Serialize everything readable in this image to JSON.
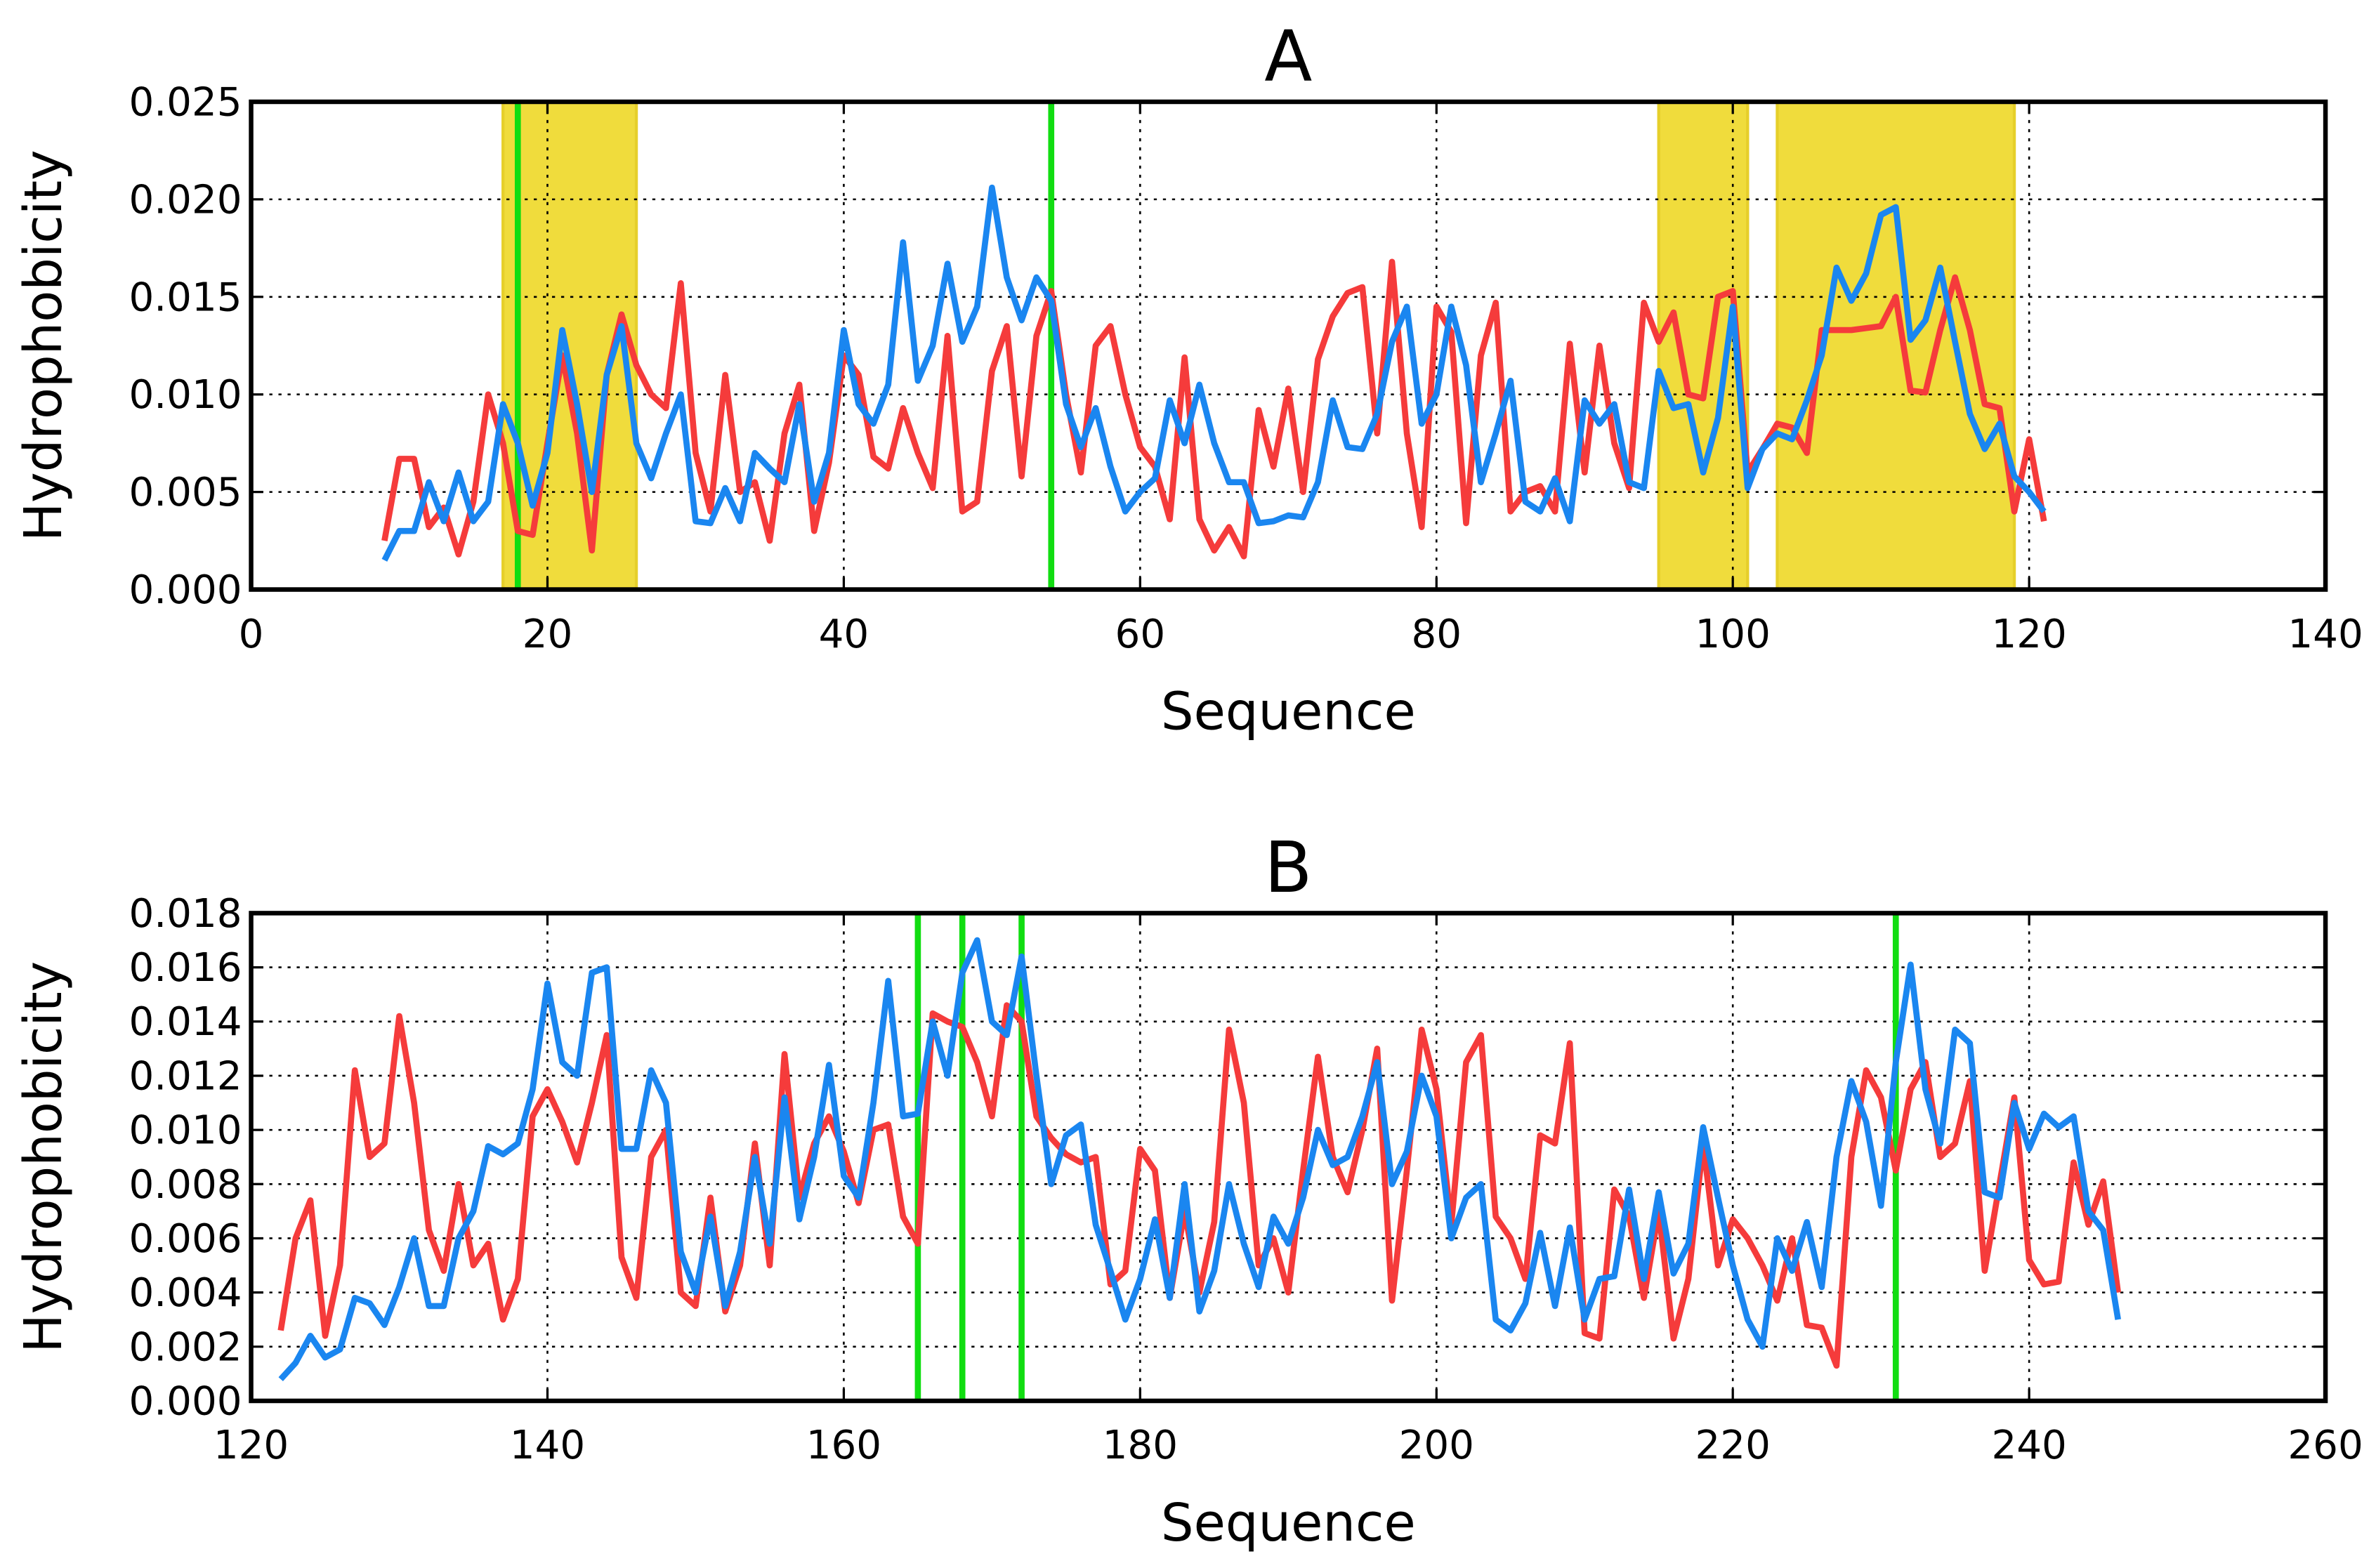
{
  "chart_data": [
    {
      "type": "line",
      "title": "A",
      "xlabel": "Sequence",
      "ylabel": "Hydrophobicity",
      "x": [
        9,
        10,
        11,
        12,
        13,
        14,
        15,
        16,
        17,
        18,
        19,
        20,
        21,
        22,
        23,
        24,
        25,
        26,
        27,
        28,
        29,
        30,
        31,
        32,
        33,
        34,
        35,
        36,
        37,
        38,
        39,
        40,
        41,
        42,
        43,
        44,
        45,
        46,
        47,
        48,
        49,
        50,
        51,
        52,
        53,
        54,
        55,
        56,
        57,
        58,
        59,
        60,
        61,
        62,
        63,
        64,
        65,
        66,
        67,
        68,
        69,
        70,
        71,
        72,
        73,
        74,
        75,
        76,
        77,
        78,
        79,
        80,
        81,
        82,
        83,
        84,
        85,
        86,
        87,
        88,
        89,
        90,
        91,
        92,
        93,
        94,
        95,
        96,
        97,
        98,
        99,
        100,
        101,
        102,
        103,
        104,
        105,
        106,
        107,
        108,
        109,
        110,
        111,
        112,
        113,
        114,
        115,
        116,
        117,
        118,
        119,
        120,
        121
      ],
      "series": [
        {
          "color": "#f53b3b",
          "values": [
            0.0025,
            0.0067,
            0.0067,
            0.0032,
            0.0042,
            0.0018,
            0.0045,
            0.01,
            0.0075,
            0.003,
            0.0028,
            0.0075,
            0.012,
            0.008,
            0.002,
            0.011,
            0.0141,
            0.0115,
            0.01,
            0.0093,
            0.0157,
            0.007,
            0.004,
            0.011,
            0.005,
            0.0055,
            0.0025,
            0.008,
            0.0105,
            0.003,
            0.0065,
            0.012,
            0.011,
            0.0068,
            0.0062,
            0.0093,
            0.007,
            0.0052,
            0.013,
            0.004,
            0.0045,
            0.0112,
            0.0135,
            0.0058,
            0.013,
            0.0153,
            0.01,
            0.006,
            0.0125,
            0.0135,
            0.01,
            0.0073,
            0.0063,
            0.0036,
            0.0119,
            0.0036,
            0.002,
            0.0032,
            0.0017,
            0.0092,
            0.0063,
            0.0103,
            0.005,
            0.0118,
            0.014,
            0.0152,
            0.0155,
            0.008,
            0.0168,
            0.008,
            0.0032,
            0.0145,
            0.0132,
            0.0034,
            0.012,
            0.0147,
            0.004,
            0.005,
            0.0053,
            0.004,
            0.0126,
            0.006,
            0.0125,
            0.0075,
            0.0052,
            0.0147,
            0.0127,
            0.0142,
            0.01,
            0.0098,
            0.015,
            0.0153,
            0.006,
            0.0072,
            0.0085,
            0.0083,
            0.007,
            0.0133,
            0.0133,
            0.0133,
            0.0134,
            0.0135,
            0.015,
            0.0102,
            0.0101,
            0.0133,
            0.016,
            0.0133,
            0.0095,
            0.0093,
            0.004,
            0.0077,
            0.0035
          ]
        },
        {
          "color": "#1a86f0",
          "values": [
            0.0015,
            0.003,
            0.003,
            0.0055,
            0.0035,
            0.006,
            0.0035,
            0.0045,
            0.0095,
            0.0075,
            0.0043,
            0.007,
            0.0133,
            0.0095,
            0.005,
            0.011,
            0.0135,
            0.0075,
            0.0057,
            0.008,
            0.01,
            0.0035,
            0.0034,
            0.0052,
            0.0035,
            0.007,
            0.0062,
            0.0055,
            0.0095,
            0.0045,
            0.007,
            0.0133,
            0.0095,
            0.0085,
            0.0105,
            0.0178,
            0.0107,
            0.0125,
            0.0167,
            0.0127,
            0.0145,
            0.0206,
            0.016,
            0.0138,
            0.016,
            0.0148,
            0.0095,
            0.0073,
            0.0093,
            0.0063,
            0.004,
            0.005,
            0.0057,
            0.0097,
            0.0075,
            0.0105,
            0.0075,
            0.0055,
            0.0055,
            0.0034,
            0.0035,
            0.0038,
            0.0037,
            0.0055,
            0.0097,
            0.0073,
            0.0072,
            0.009,
            0.0127,
            0.0145,
            0.0085,
            0.01,
            0.0145,
            0.0115,
            0.0055,
            0.008,
            0.0107,
            0.0045,
            0.004,
            0.0057,
            0.0035,
            0.0097,
            0.0085,
            0.0095,
            0.0055,
            0.0052,
            0.0112,
            0.0093,
            0.0095,
            0.006,
            0.0088,
            0.0145,
            0.0052,
            0.0072,
            0.008,
            0.0077,
            0.0097,
            0.012,
            0.0165,
            0.0148,
            0.0162,
            0.0192,
            0.0196,
            0.0128,
            0.0138,
            0.0165,
            0.0127,
            0.009,
            0.0072,
            0.0085,
            0.0058,
            0.005,
            0.004
          ]
        }
      ],
      "xlim": [
        0,
        140
      ],
      "xticks": [
        0,
        20,
        40,
        60,
        80,
        100,
        120,
        140
      ],
      "ylim": [
        0,
        0.025
      ],
      "yticks": [
        {
          "value": 0,
          "label": "0.000"
        },
        0.005,
        {
          "value": 0.01,
          "label": "0.010"
        },
        0.015,
        {
          "value": 0.02,
          "label": "0.020"
        },
        0.025
      ],
      "grid": true,
      "spans": [
        [
          17,
          26
        ],
        [
          95,
          101
        ],
        [
          103,
          119
        ]
      ],
      "span_color": "#f0dc3c",
      "vlines": [
        18,
        54
      ],
      "vline_color": "#11dd11"
    },
    {
      "type": "line",
      "title": "B",
      "xlabel": "Sequence",
      "ylabel": "Hydrophobicity",
      "x": [
        122,
        123,
        124,
        125,
        126,
        127,
        128,
        129,
        130,
        131,
        132,
        133,
        134,
        135,
        136,
        137,
        138,
        139,
        140,
        141,
        142,
        143,
        144,
        145,
        146,
        147,
        148,
        149,
        150,
        151,
        152,
        153,
        154,
        155,
        156,
        157,
        158,
        159,
        160,
        161,
        162,
        163,
        164,
        165,
        166,
        167,
        168,
        169,
        170,
        171,
        172,
        173,
        174,
        175,
        176,
        177,
        178,
        179,
        180,
        181,
        182,
        183,
        184,
        185,
        186,
        187,
        188,
        189,
        190,
        191,
        192,
        193,
        194,
        195,
        196,
        197,
        198,
        199,
        200,
        201,
        202,
        203,
        204,
        205,
        206,
        207,
        208,
        209,
        210,
        211,
        212,
        213,
        214,
        215,
        216,
        217,
        218,
        219,
        220,
        221,
        222,
        223,
        224,
        225,
        226,
        227,
        228,
        229,
        230,
        231,
        232,
        233,
        234,
        235,
        236,
        237,
        238,
        239,
        240,
        241,
        242,
        243,
        244,
        245,
        246
      ],
      "series": [
        {
          "color": "#f53b3b",
          "values": [
            0.0026,
            0.006,
            0.0074,
            0.0024,
            0.005,
            0.0122,
            0.009,
            0.0095,
            0.0142,
            0.011,
            0.0063,
            0.0048,
            0.008,
            0.005,
            0.0058,
            0.003,
            0.0045,
            0.0105,
            0.0115,
            0.0103,
            0.0088,
            0.011,
            0.0135,
            0.0053,
            0.0038,
            0.009,
            0.01,
            0.004,
            0.0035,
            0.0075,
            0.0033,
            0.005,
            0.0095,
            0.005,
            0.0128,
            0.0075,
            0.0095,
            0.0105,
            0.0092,
            0.0073,
            0.01,
            0.0102,
            0.0068,
            0.0058,
            0.0143,
            0.014,
            0.0138,
            0.0125,
            0.0105,
            0.0146,
            0.014,
            0.0105,
            0.0097,
            0.0091,
            0.0088,
            0.009,
            0.0043,
            0.0048,
            0.0093,
            0.0085,
            0.0038,
            0.007,
            0.004,
            0.0066,
            0.0137,
            0.011,
            0.005,
            0.006,
            0.004,
            0.0085,
            0.0127,
            0.009,
            0.0077,
            0.01,
            0.013,
            0.0037,
            0.0085,
            0.0137,
            0.0115,
            0.0065,
            0.0125,
            0.0135,
            0.0068,
            0.006,
            0.0045,
            0.0098,
            0.0095,
            0.0132,
            0.0025,
            0.0023,
            0.0078,
            0.0068,
            0.0038,
            0.007,
            0.0023,
            0.0045,
            0.0095,
            0.005,
            0.0067,
            0.006,
            0.005,
            0.0037,
            0.006,
            0.0028,
            0.0027,
            0.0013,
            0.009,
            0.0122,
            0.0112,
            0.0085,
            0.0115,
            0.0125,
            0.009,
            0.0095,
            0.0118,
            0.0048,
            0.008,
            0.0112,
            0.0052,
            0.0043,
            0.0044,
            0.0088,
            0.0065,
            0.0081,
            0.004
          ]
        },
        {
          "color": "#1a86f0",
          "values": [
            0.0008,
            0.0014,
            0.0024,
            0.0016,
            0.0019,
            0.0038,
            0.0036,
            0.0028,
            0.0042,
            0.006,
            0.0035,
            0.0035,
            0.006,
            0.007,
            0.0094,
            0.0091,
            0.0095,
            0.0115,
            0.0154,
            0.0125,
            0.012,
            0.0158,
            0.016,
            0.0093,
            0.0093,
            0.0122,
            0.011,
            0.0055,
            0.004,
            0.0068,
            0.0035,
            0.0055,
            0.009,
            0.0058,
            0.0112,
            0.0067,
            0.009,
            0.0124,
            0.0083,
            0.0075,
            0.011,
            0.0155,
            0.0105,
            0.0106,
            0.014,
            0.012,
            0.0158,
            0.017,
            0.014,
            0.0135,
            0.0164,
            0.012,
            0.008,
            0.0098,
            0.0102,
            0.0065,
            0.0048,
            0.003,
            0.0045,
            0.0067,
            0.0038,
            0.008,
            0.0033,
            0.0048,
            0.008,
            0.0058,
            0.0042,
            0.0068,
            0.0058,
            0.0075,
            0.01,
            0.0087,
            0.009,
            0.0105,
            0.0125,
            0.008,
            0.0092,
            0.012,
            0.0105,
            0.006,
            0.0075,
            0.008,
            0.003,
            0.0026,
            0.0036,
            0.0062,
            0.0035,
            0.0064,
            0.003,
            0.0045,
            0.0046,
            0.0078,
            0.0045,
            0.0077,
            0.0047,
            0.0058,
            0.0101,
            0.0075,
            0.005,
            0.003,
            0.002,
            0.006,
            0.0048,
            0.0066,
            0.0042,
            0.009,
            0.0118,
            0.0103,
            0.0072,
            0.0125,
            0.0161,
            0.0115,
            0.0095,
            0.0137,
            0.0132,
            0.0077,
            0.0075,
            0.011,
            0.0093,
            0.0106,
            0.0101,
            0.0105,
            0.007,
            0.0063,
            0.003
          ]
        }
      ],
      "xlim": [
        120,
        260
      ],
      "xticks": [
        120,
        140,
        160,
        180,
        200,
        220,
        240,
        260
      ],
      "ylim": [
        0,
        0.018
      ],
      "yticks": [
        {
          "value": 0,
          "label": "0.000"
        },
        0.002,
        0.004,
        0.006,
        0.008,
        {
          "value": 0.01,
          "label": "0.010"
        },
        0.012,
        0.014,
        0.016,
        0.018
      ],
      "grid": true,
      "spans": [],
      "span_color": "#f0dc3c",
      "vlines": [
        165,
        168,
        172,
        231
      ],
      "vline_color": "#11dd11"
    }
  ]
}
